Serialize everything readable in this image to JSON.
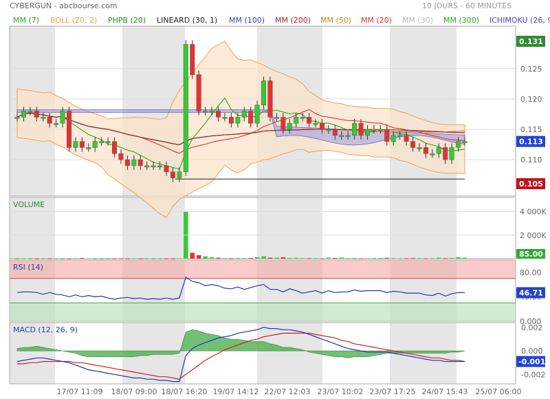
{
  "header": {
    "ticker_label": "CYBERGUN - abcbourse.com",
    "period_label": "10 JOURS - 60 MINUTES"
  },
  "legend": [
    {
      "label": "MM (7)",
      "color": "#22aa22"
    },
    {
      "label": "BOLL (20, 2)",
      "color": "#f0a050"
    },
    {
      "label": "PHPB (20)",
      "color": "#2a8a2a"
    },
    {
      "label": "LINEARD (30, 1)",
      "color": "#222222"
    },
    {
      "label": "MM (100)",
      "color": "#3344cc"
    },
    {
      "label": "MM (200)",
      "color": "#aa2222"
    },
    {
      "label": "MM (50)",
      "color": "#e08020"
    },
    {
      "label": "MM (20)",
      "color": "#dd3333"
    },
    {
      "label": "MM (30)",
      "color": "#bbbbbb"
    },
    {
      "label": "MM (300)",
      "color": "#22aa22"
    },
    {
      "label": "ICHIMOKU (26, 9",
      "color": "#4444cc"
    }
  ],
  "price_panel": {
    "yticks": [
      "0.125",
      "0.120",
      "0.115",
      "0.110"
    ],
    "badge_high": "0.131",
    "badge_last": "0.113",
    "badge_low": "0.105",
    "colors": {
      "high": "#2e8b2e",
      "last": "#2244cc",
      "low": "#c0141e",
      "up": "#33cc33",
      "down": "#e83030"
    }
  },
  "volume_panel": {
    "title": "VOLUME",
    "yticks": [
      "4 000K",
      "2 000K"
    ],
    "badge_last": "85.00"
  },
  "rsi_panel": {
    "title": "RSI (14)",
    "yticks": [
      "80.00",
      "40.00",
      "0.000"
    ],
    "badge_last": "46.71"
  },
  "macd_panel": {
    "title": "MACD (12, 26, 9)",
    "yticks": [
      "0.002",
      "0.000",
      "-0.002"
    ],
    "badge_last": "-0.001"
  },
  "x_axis": {
    "labels": [
      "17/07 11:09",
      "18/07 09:00",
      "18/07 16:20",
      "19/07 14:12",
      "22/07 12:03",
      "23/07 10:02",
      "23/07 17:25",
      "24/07 15:43",
      "25/07 06:00"
    ]
  },
  "chart_data": [
    {
      "type": "candlestick",
      "title": "CYBERGUN",
      "ylim": [
        0.104,
        0.132
      ],
      "candles_close": [
        0.117,
        0.118,
        0.118,
        0.117,
        0.117,
        0.116,
        0.116,
        0.118,
        0.112,
        0.113,
        0.112,
        0.112,
        0.113,
        0.113,
        0.113,
        0.111,
        0.11,
        0.109,
        0.11,
        0.109,
        0.109,
        0.109,
        0.109,
        0.108,
        0.107,
        0.108,
        0.129,
        0.124,
        0.118,
        0.118,
        0.118,
        0.117,
        0.117,
        0.116,
        0.117,
        0.118,
        0.116,
        0.119,
        0.123,
        0.117,
        0.117,
        0.115,
        0.116,
        0.117,
        0.117,
        0.116,
        0.116,
        0.115,
        0.115,
        0.114,
        0.114,
        0.114,
        0.116,
        0.114,
        0.115,
        0.115,
        0.115,
        0.113,
        0.114,
        0.114,
        0.113,
        0.112,
        0.112,
        0.111,
        0.111,
        0.112,
        0.11,
        0.112,
        0.113,
        0.113
      ],
      "volume_k": [
        10,
        20,
        15,
        12,
        20,
        15,
        10,
        10,
        15,
        40,
        60,
        30,
        10,
        15,
        10,
        20,
        30,
        20,
        25,
        15,
        20,
        15,
        20,
        20,
        15,
        40,
        4000,
        500,
        300,
        200,
        120,
        80,
        50,
        40,
        60,
        50,
        60,
        120,
        200,
        90,
        80,
        120,
        60,
        70,
        50,
        40,
        40,
        30,
        80,
        60,
        90,
        40,
        50,
        30,
        40,
        50,
        60,
        70,
        40,
        30,
        40,
        50,
        40,
        30,
        40,
        80,
        40,
        60,
        120,
        85
      ]
    },
    {
      "type": "line",
      "title": "RSI (14)",
      "ylim": [
        0,
        100
      ],
      "values": [
        47,
        48,
        48,
        47,
        44,
        47,
        44,
        43,
        40,
        43,
        40,
        42,
        40,
        41,
        38,
        36,
        38,
        39,
        37,
        38,
        36,
        37,
        36,
        38,
        36,
        38,
        72,
        65,
        63,
        58,
        60,
        58,
        54,
        53,
        56,
        52,
        55,
        58,
        60,
        52,
        52,
        48,
        53,
        50,
        46,
        48,
        50,
        46,
        50,
        47,
        48,
        48,
        51,
        49,
        50,
        50,
        50,
        47,
        49,
        48,
        46,
        46,
        46,
        43,
        42,
        46,
        41,
        45,
        47,
        46.71
      ]
    },
    {
      "type": "line",
      "title": "MACD (12, 26, 9)",
      "ylim": [
        -0.0028,
        0.0024
      ],
      "series": [
        {
          "name": "MACD",
          "values": [
            -0.0009,
            -0.0008,
            -0.0007,
            -0.0006,
            -0.0006,
            -0.0007,
            -0.0008,
            -0.0009,
            -0.001,
            -0.0012,
            -0.0014,
            -0.0016,
            -0.0017,
            -0.0018,
            -0.0019,
            -0.002,
            -0.0021,
            -0.0022,
            -0.0023,
            -0.0023,
            -0.0024,
            -0.0024,
            -0.0025,
            -0.0025,
            -0.0026,
            -0.0026,
            -0.0004,
            0.0002,
            0.0005,
            0.0007,
            0.0009,
            0.0011,
            0.0012,
            0.0013,
            0.0015,
            0.0016,
            0.0017,
            0.0018,
            0.002,
            0.0019,
            0.0019,
            0.0018,
            0.0018,
            0.0017,
            0.0016,
            0.0014,
            0.0012,
            0.001,
            0.0008,
            0.0006,
            0.0004,
            0.0002,
            0.0001,
            0.0,
            -0.0001,
            -0.0001,
            -0.0001,
            -0.0001,
            -0.0002,
            -0.0003,
            -0.0004,
            -0.0005,
            -0.0006,
            -0.0007,
            -0.0008,
            -0.0008,
            -0.0009,
            -0.0009,
            -0.0009,
            -0.0009
          ]
        },
        {
          "name": "Signal",
          "values": [
            -0.0011,
            -0.0011,
            -0.001,
            -0.001,
            -0.0009,
            -0.0009,
            -0.0009,
            -0.0009,
            -0.0009,
            -0.001,
            -0.001,
            -0.0011,
            -0.0012,
            -0.0013,
            -0.0014,
            -0.0015,
            -0.0016,
            -0.0017,
            -0.0018,
            -0.0019,
            -0.002,
            -0.0021,
            -0.0022,
            -0.0022,
            -0.0023,
            -0.0024,
            -0.002,
            -0.0016,
            -0.0012,
            -0.0008,
            -0.0005,
            -0.0002,
            0.0001,
            0.0003,
            0.0005,
            0.0007,
            0.0009,
            0.001,
            0.0012,
            0.0013,
            0.0014,
            0.0015,
            0.0015,
            0.0015,
            0.0015,
            0.0015,
            0.0014,
            0.0013,
            0.0012,
            0.0011,
            0.0009,
            0.0008,
            0.0006,
            0.0005,
            0.0004,
            0.0003,
            0.0002,
            0.0001,
            0.0,
            -0.0001,
            -0.0002,
            -0.0003,
            -0.0004,
            -0.0005,
            -0.0006,
            -0.0006,
            -0.0007,
            -0.0008,
            -0.0008,
            -0.0009
          ]
        }
      ]
    }
  ]
}
